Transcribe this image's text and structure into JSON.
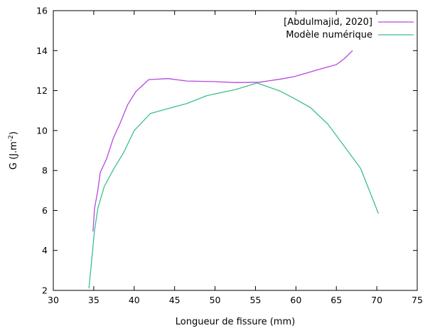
{
  "chart_data": {
    "type": "line",
    "xlabel": "Longueur de fissure (mm)",
    "ylabel_main": "G (J.m",
    "ylabel_sup": "-2",
    "ylabel_tail": ")",
    "xlim": [
      30,
      75
    ],
    "ylim": [
      2,
      16
    ],
    "xticks": [
      30,
      35,
      40,
      45,
      50,
      55,
      60,
      65,
      70,
      75
    ],
    "yticks": [
      2,
      4,
      6,
      8,
      10,
      12,
      14,
      16
    ],
    "grid": false,
    "legend_position": "top-right",
    "series": [
      {
        "name": "[Abdulmajid, 2020]",
        "color": "#b44ae0",
        "points": [
          [
            34.9,
            4.95
          ],
          [
            35.1,
            6.1
          ],
          [
            35.5,
            7.0
          ],
          [
            35.8,
            7.9
          ],
          [
            36.6,
            8.6
          ],
          [
            37.4,
            9.6
          ],
          [
            38.3,
            10.4
          ],
          [
            39.2,
            11.3
          ],
          [
            40.2,
            11.95
          ],
          [
            41.8,
            12.55
          ],
          [
            44.2,
            12.6
          ],
          [
            46.5,
            12.48
          ],
          [
            49.8,
            12.45
          ],
          [
            52.5,
            12.4
          ],
          [
            55.5,
            12.42
          ],
          [
            58.2,
            12.58
          ],
          [
            59.8,
            12.7
          ],
          [
            61.5,
            12.9
          ],
          [
            63.2,
            13.1
          ],
          [
            65.0,
            13.3
          ],
          [
            66.0,
            13.6
          ],
          [
            67.0,
            14.0
          ]
        ]
      },
      {
        "name": "Modèle numérique",
        "color": "#3cbf8f",
        "points": [
          [
            34.4,
            2.1
          ],
          [
            34.6,
            2.9
          ],
          [
            35.1,
            5.0
          ],
          [
            35.5,
            6.1
          ],
          [
            36.3,
            7.2
          ],
          [
            37.5,
            8.1
          ],
          [
            38.7,
            8.9
          ],
          [
            40.0,
            10.0
          ],
          [
            42.0,
            10.85
          ],
          [
            44.2,
            11.1
          ],
          [
            46.5,
            11.35
          ],
          [
            49.0,
            11.75
          ],
          [
            52.5,
            12.05
          ],
          [
            55.2,
            12.38
          ],
          [
            58.0,
            11.98
          ],
          [
            59.8,
            11.6
          ],
          [
            61.8,
            11.15
          ],
          [
            64.0,
            10.3
          ],
          [
            66.0,
            9.2
          ],
          [
            68.0,
            8.1
          ],
          [
            70.2,
            5.85
          ]
        ]
      }
    ]
  }
}
